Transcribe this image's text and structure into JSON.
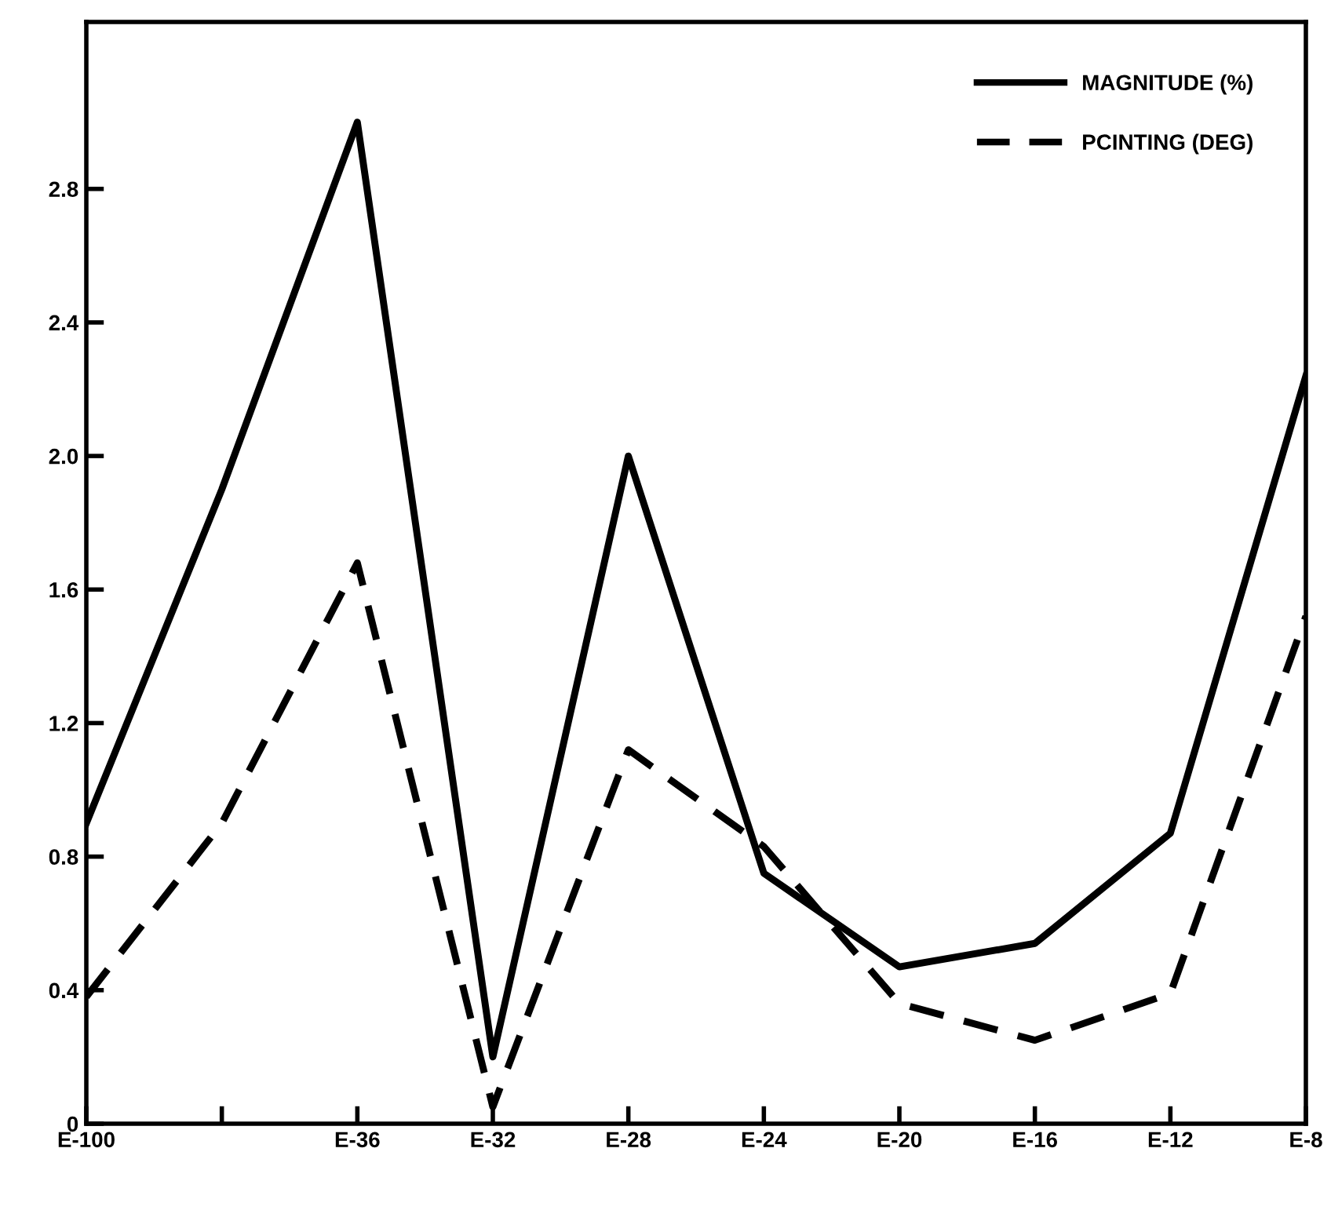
{
  "chart_data": {
    "type": "line",
    "categories": [
      "E-100",
      null,
      "E-36",
      "E-32",
      "E-28",
      "E-24",
      "E-20",
      "E-16",
      "E-12",
      "E-8"
    ],
    "series": [
      {
        "name": "MAGNITUDE (%)",
        "color": "#000000",
        "line_style": "solid",
        "values": [
          0.9,
          1.9,
          3.0,
          0.2,
          2.0,
          0.75,
          0.47,
          0.54,
          0.87,
          2.24
        ]
      },
      {
        "name": "PCINTING (DEG)",
        "color": "#000000",
        "line_style": "dashed",
        "values": [
          0.38,
          0.9,
          1.68,
          0.05,
          1.12,
          0.83,
          0.36,
          0.25,
          0.39,
          1.52
        ]
      }
    ],
    "ylim": [
      0,
      3.3
    ],
    "yticks": [
      {
        "value": 0,
        "label": "0"
      },
      0.4,
      0.8,
      1.2,
      1.6,
      {
        "value": 2,
        "label": "2.0"
      },
      2.4,
      2.8
    ],
    "grid": false,
    "legend": "top right",
    "marker": "none"
  }
}
